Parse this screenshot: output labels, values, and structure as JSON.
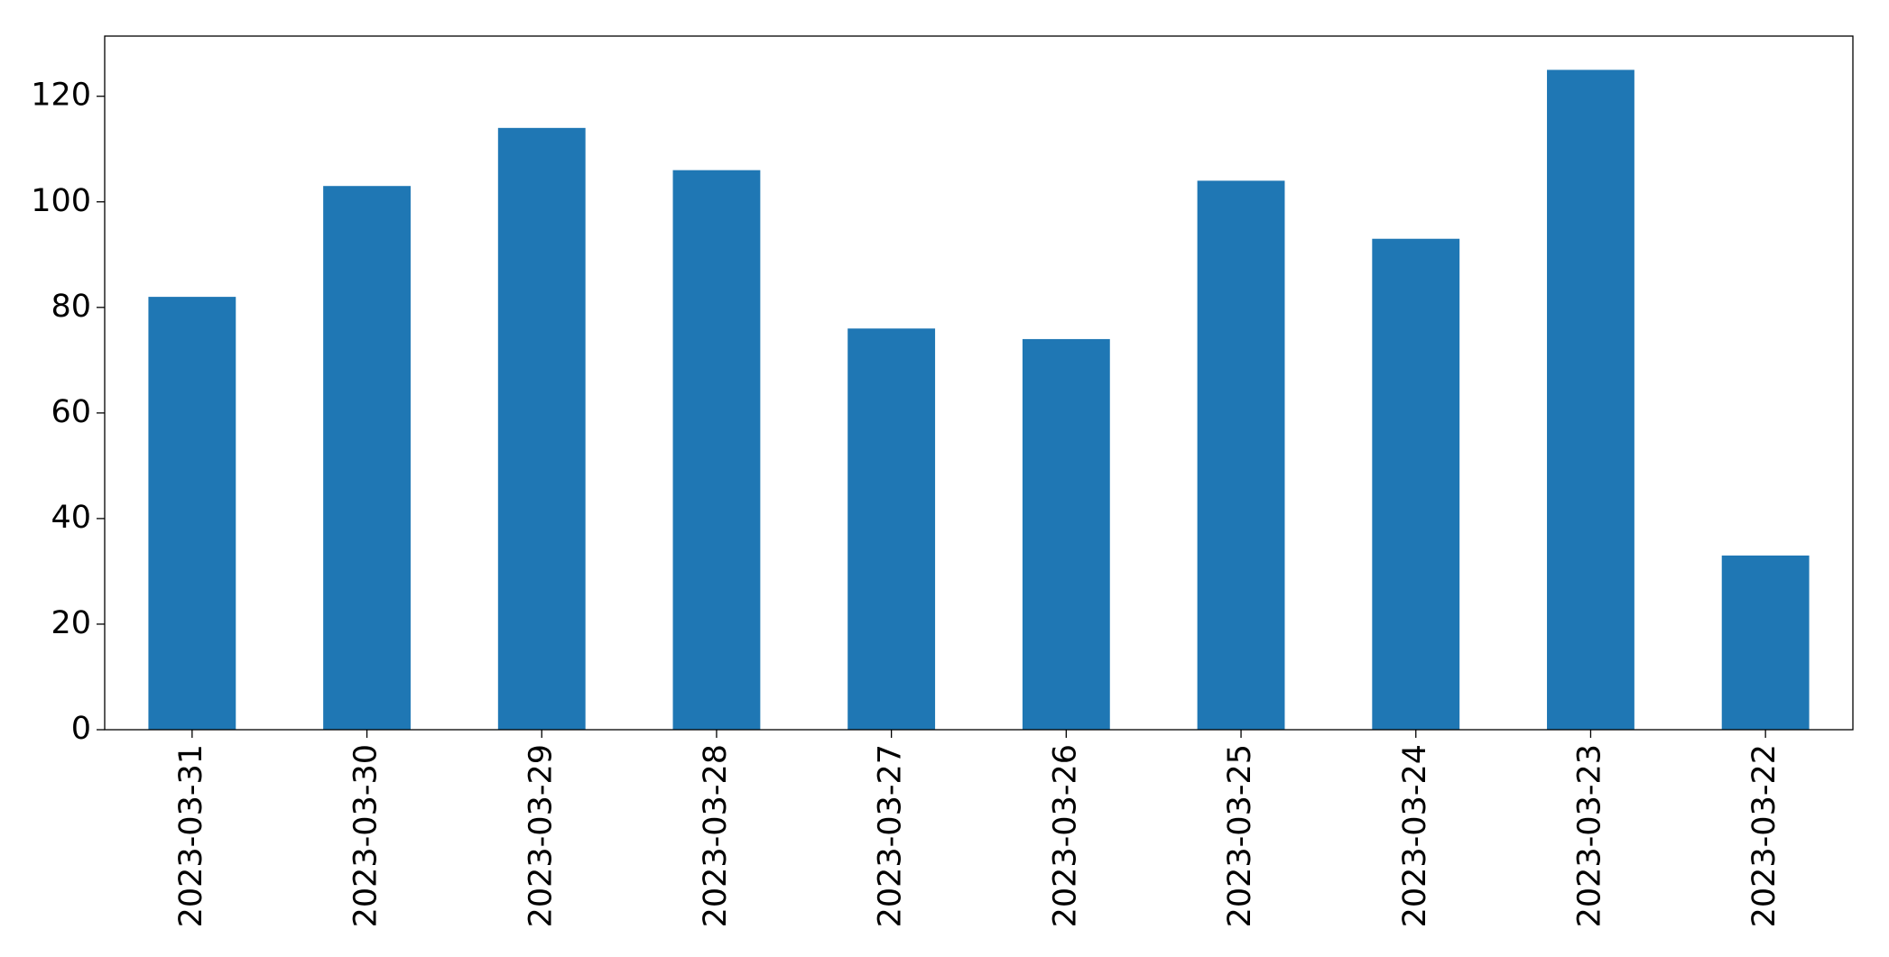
{
  "chart_data": {
    "type": "bar",
    "categories": [
      "2023-03-31",
      "2023-03-30",
      "2023-03-29",
      "2023-03-28",
      "2023-03-27",
      "2023-03-26",
      "2023-03-25",
      "2023-03-24",
      "2023-03-23",
      "2023-03-22"
    ],
    "values": [
      82,
      103,
      114,
      106,
      76,
      74,
      104,
      93,
      125,
      33
    ],
    "color": "#1f77b4",
    "ylim": [
      0,
      131.4
    ],
    "yticks": [
      0,
      20,
      40,
      60,
      80,
      100,
      120
    ],
    "grid": false
  }
}
